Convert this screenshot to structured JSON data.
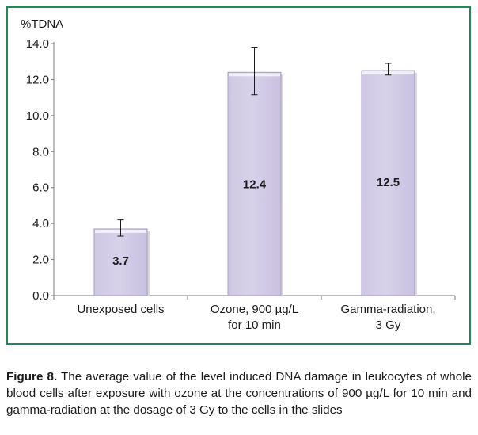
{
  "chart_data": {
    "type": "bar",
    "ylabel": "%TDNA",
    "ylim": [
      0,
      14
    ],
    "y_ticks": [
      "0.0",
      "2.0",
      "4.0",
      "6.0",
      "8.0",
      "10.0",
      "12.0",
      "14.0"
    ],
    "categories": [
      [
        "Unexposed cells"
      ],
      [
        "Ozone, 900 µg/L",
        "for 10 min"
      ],
      [
        "Gamma-radiation,",
        "3 Gy"
      ]
    ],
    "values": [
      3.7,
      12.4,
      12.5
    ],
    "data_labels": [
      "3.7",
      "12.4",
      "12.5"
    ],
    "error_bars": [
      {
        "low": 3.3,
        "high": 4.2
      },
      {
        "low": 11.15,
        "high": 13.8
      },
      {
        "low": 12.25,
        "high": 12.9
      }
    ],
    "grid": false,
    "legend": "none",
    "colors": {
      "bar_fill": "#d7d1ea",
      "bar_edge": "#a79cc4",
      "frame": "#1f8a55"
    }
  },
  "caption": {
    "label": "Figure 8.",
    "text": " The average value of the level induced DNA damage in leukocytes of whole blood cells after exposure with ozone at the concentrations of 900 µg/L for 10 min and gamma-radiation at the dosage of 3 Gy to the cells in the slides"
  }
}
